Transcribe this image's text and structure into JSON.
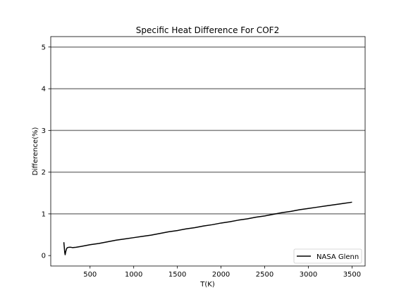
{
  "chart_data": {
    "type": "line",
    "title": "Specific Heat Difference For COF2",
    "xlabel": "T(K)",
    "ylabel": "Difference(%)",
    "xlim": [
      50,
      3650
    ],
    "ylim": [
      -0.25,
      5.25
    ],
    "xticks": [
      500,
      1000,
      1500,
      2000,
      2500,
      3000,
      3500
    ],
    "yticks": [
      0,
      1,
      2,
      3,
      4,
      5
    ],
    "hlines": [
      1,
      2,
      3,
      4,
      5
    ],
    "grid": false,
    "legend_position": "lower-right",
    "series": [
      {
        "name": "NASA Glenn",
        "color": "#000000",
        "x": [
          200,
          205,
          210,
          215,
          220,
          230,
          240,
          260,
          280,
          300,
          340,
          400,
          500,
          600,
          700,
          800,
          900,
          1000,
          1100,
          1200,
          1300,
          1400,
          1500,
          1600,
          1700,
          1800,
          1900,
          2000,
          2100,
          2200,
          2300,
          2400,
          2500,
          2600,
          2700,
          2800,
          2900,
          3000,
          3100,
          3200,
          3300,
          3400,
          3500
        ],
        "y": [
          0.32,
          0.2,
          0.08,
          0.02,
          0.08,
          0.16,
          0.19,
          0.2,
          0.2,
          0.19,
          0.2,
          0.22,
          0.26,
          0.29,
          0.33,
          0.37,
          0.4,
          0.43,
          0.46,
          0.49,
          0.53,
          0.57,
          0.6,
          0.64,
          0.67,
          0.71,
          0.74,
          0.78,
          0.81,
          0.85,
          0.88,
          0.92,
          0.95,
          0.99,
          1.03,
          1.06,
          1.1,
          1.13,
          1.16,
          1.19,
          1.22,
          1.25,
          1.28
        ]
      }
    ]
  }
}
